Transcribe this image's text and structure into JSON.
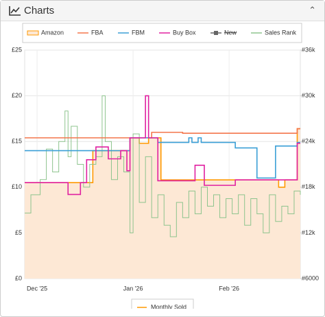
{
  "header": {
    "title": "Charts"
  },
  "chart_data": {
    "type": "step-line",
    "xlim": [
      -4,
      85
    ],
    "xticks": [
      {
        "value": 0,
        "label": "Dec '25"
      },
      {
        "value": 31,
        "label": "Jan '26"
      },
      {
        "value": 62,
        "label": "Feb '26"
      }
    ],
    "ylim": [
      0,
      25
    ],
    "yticks": [
      {
        "value": 0,
        "label": "£0"
      },
      {
        "value": 5,
        "label": "£5"
      },
      {
        "value": 10,
        "label": "£10"
      },
      {
        "value": 15,
        "label": "£15"
      },
      {
        "value": 20,
        "label": "£20"
      },
      {
        "value": 25,
        "label": "£25"
      }
    ],
    "y2lim": [
      6000,
      36000
    ],
    "y2ticks": [
      {
        "value": 6000,
        "label": "#6000"
      },
      {
        "value": 12000,
        "label": "#12k"
      },
      {
        "value": 18000,
        "label": "#18k"
      },
      {
        "value": 24000,
        "label": "#24k"
      },
      {
        "value": 30000,
        "label": "#30k"
      },
      {
        "value": 36000,
        "label": "#36k"
      }
    ],
    "grid": true,
    "series": [
      {
        "name": "Amazon",
        "color": "#ff9900",
        "fill": "#fde8d5",
        "x": [
          -4,
          18,
          30,
          33,
          36,
          40,
          78,
          80,
          84
        ],
        "values": [
          10.5,
          14,
          15.4,
          14.8,
          15.4,
          10.8,
          10,
          10.8,
          16.4
        ]
      },
      {
        "name": "FBA",
        "color": "#f4764b",
        "x": [
          -4,
          37,
          47,
          84
        ],
        "values": [
          15.4,
          16.0,
          15.9,
          16.4
        ]
      },
      {
        "name": "FBM",
        "color": "#3a9fd6",
        "x": [
          -4,
          30,
          39,
          49,
          50,
          52,
          53,
          64,
          71,
          77,
          84
        ],
        "values": [
          14.0,
          15.4,
          14.9,
          15.4,
          14.9,
          15.4,
          14.9,
          14.3,
          11.0,
          14.5,
          14.9
        ]
      },
      {
        "name": "Buy Box",
        "color": "#e020a0",
        "x": [
          -4,
          10,
          14,
          16,
          19,
          23,
          27,
          29,
          30,
          35,
          36,
          39,
          51,
          54,
          64,
          84
        ],
        "values": [
          10.5,
          9.2,
          10.5,
          13.0,
          14.4,
          13.1,
          14.0,
          11.8,
          15.4,
          20.0,
          15.4,
          10.7,
          12.4,
          10.2,
          10.8,
          14.8
        ]
      },
      {
        "name": "New",
        "color": "#666666",
        "visible": false
      },
      {
        "name": "Sales Rank",
        "color": "#8dc48d",
        "axis": "y2",
        "x": [
          -4,
          -2,
          1,
          3,
          5,
          7,
          9,
          10,
          11,
          13,
          15,
          17,
          19,
          21,
          22,
          24,
          26,
          28,
          30,
          31,
          33,
          35,
          37,
          39,
          41,
          43,
          45,
          47,
          49,
          51,
          53,
          55,
          57,
          59,
          61,
          63,
          65,
          67,
          69,
          71,
          73,
          75,
          77,
          79,
          81,
          83,
          85
        ],
        "values": [
          14600,
          17000,
          19000,
          23000,
          20000,
          24000,
          28000,
          22000,
          26000,
          21000,
          18000,
          21000,
          22000,
          30000,
          24000,
          19000,
          22000,
          20000,
          12000,
          25000,
          16000,
          22000,
          14000,
          17000,
          13000,
          11500,
          16000,
          14000,
          17500,
          14500,
          18000,
          15500,
          17000,
          14000,
          16500,
          14500,
          17000,
          13000,
          16500,
          14500,
          12000,
          17000,
          13500,
          15500,
          14500,
          17500,
          17000
        ]
      }
    ],
    "extra_legend": {
      "name": "Monthly Sold",
      "color": "#ff9900"
    }
  }
}
